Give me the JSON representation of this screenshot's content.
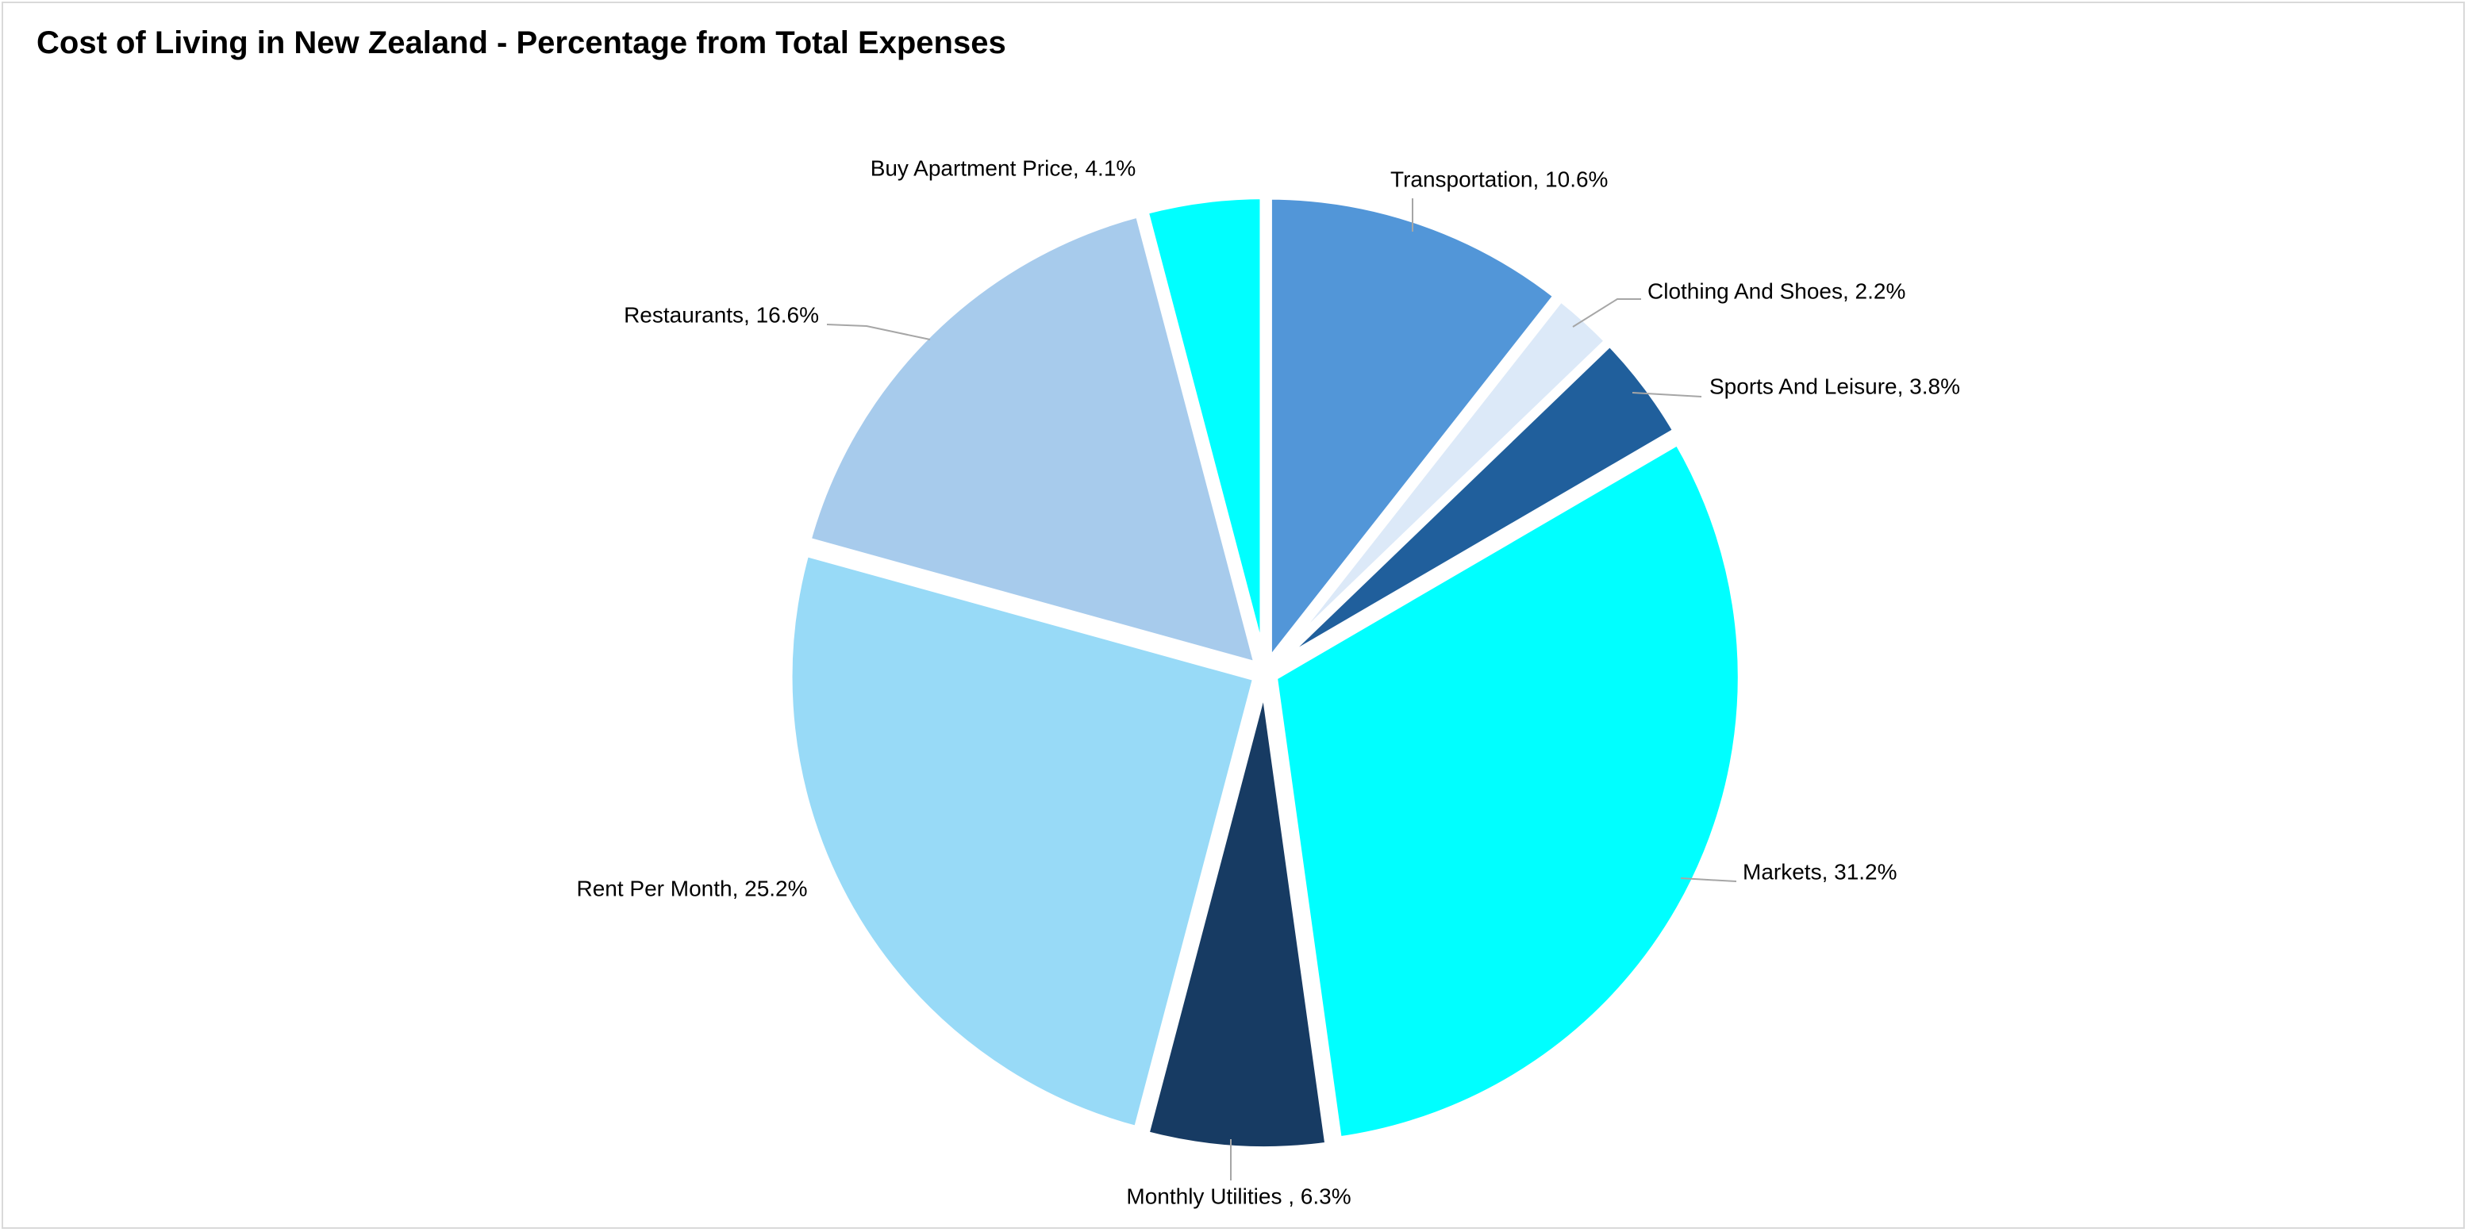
{
  "chart_data": {
    "type": "pie",
    "title": "Cost of Living in New Zealand  - Percentage from Total Expenses",
    "slices": [
      {
        "label": "Transportation, 10.6%",
        "category": "Transportation",
        "value": 10.6,
        "color": "#5296d8"
      },
      {
        "label": "Clothing And Shoes, 2.2%",
        "category": "Clothing And Shoes",
        "value": 2.2,
        "color": "#dce9f8"
      },
      {
        "label": "Sports And Leisure, 3.8%",
        "category": "Sports And Leisure",
        "value": 3.8,
        "color": "#205f9c"
      },
      {
        "label": "Markets, 31.2%",
        "category": "Markets",
        "value": 31.2,
        "color": "#00ffff"
      },
      {
        "label": "Monthly Utilities , 6.3%",
        "category": "Monthly Utilities ",
        "value": 6.3,
        "color": "#173b63"
      },
      {
        "label": "Rent Per Month, 25.2%",
        "category": "Rent Per Month",
        "value": 25.2,
        "color": "#98daf7"
      },
      {
        "label": "Restaurants, 16.6%",
        "category": "Restaurants",
        "value": 16.6,
        "color": "#a7cbec"
      },
      {
        "label": "Buy Apartment Price, 4.1%",
        "category": "Buy Apartment Price",
        "value": 4.1,
        "color": "#00ffff"
      }
    ],
    "start_angle": "12 o'clock",
    "direction": "clockwise",
    "legend": "none",
    "data_labels": "category, percent with leader lines"
  }
}
